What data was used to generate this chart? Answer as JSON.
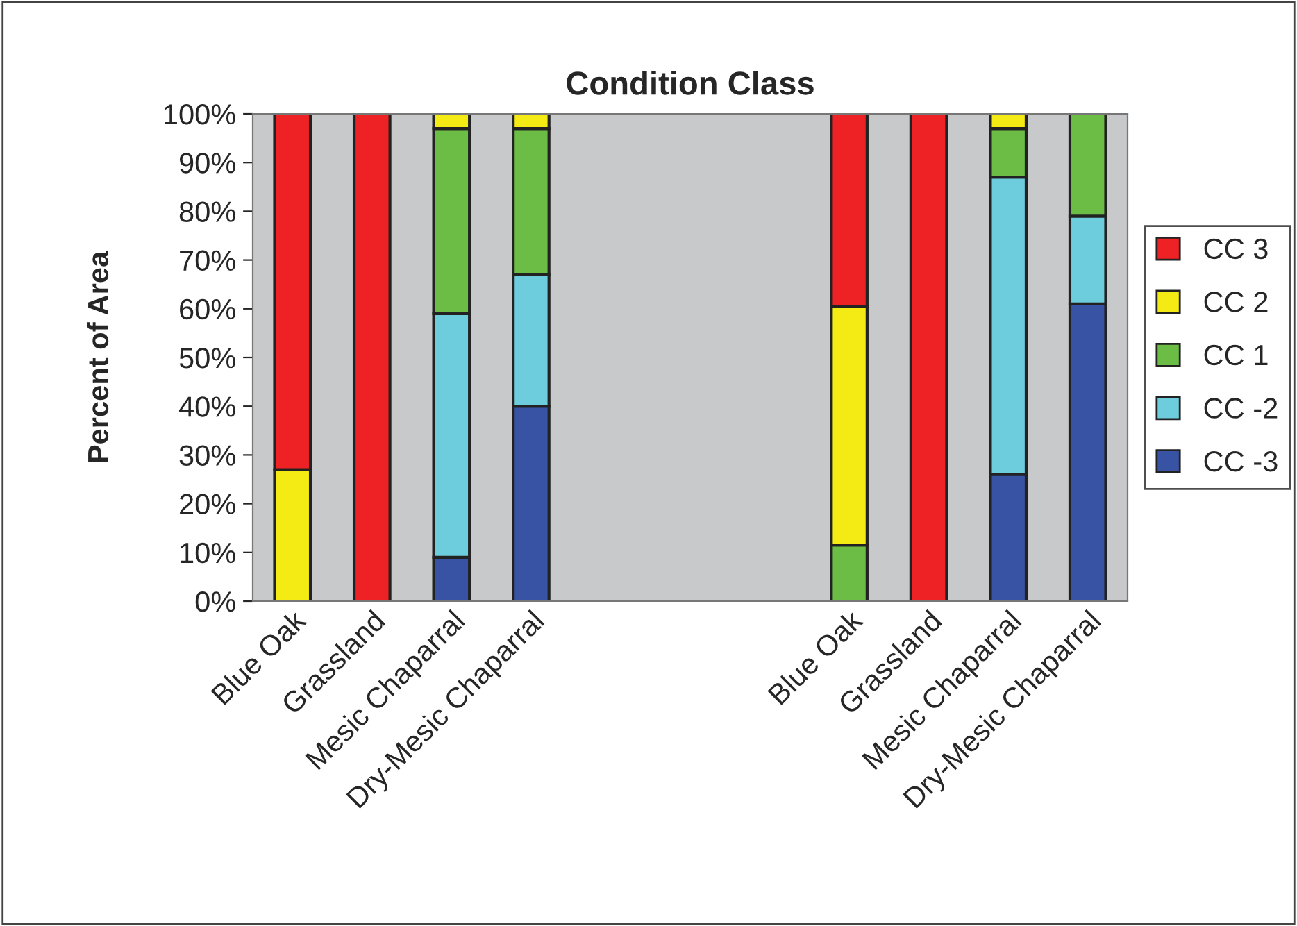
{
  "chart_data": {
    "type": "bar",
    "title": "Condition Class",
    "ylabel": "Percent of Area",
    "stacked": true,
    "categories": [
      "Blue Oak",
      "Grassland",
      "Mesic Chaparral",
      "Dry-Mesic Chaparral",
      null,
      null,
      null,
      "Blue Oak",
      "Grassland",
      "Mesic Chaparral",
      "Dry-Mesic Chaparral"
    ],
    "series": [
      {
        "name": "CC -3",
        "color": "#3953a4",
        "values": [
          0,
          0,
          9,
          40,
          null,
          null,
          null,
          0,
          0,
          26,
          61
        ]
      },
      {
        "name": "CC -2",
        "color": "#6ecddd",
        "values": [
          0,
          0,
          50,
          27,
          null,
          null,
          null,
          0,
          0,
          61,
          18
        ]
      },
      {
        "name": "CC 1",
        "color": "#6cbd45",
        "values": [
          0,
          0,
          38,
          30,
          null,
          null,
          null,
          11.5,
          0,
          10,
          21
        ]
      },
      {
        "name": "CC 2",
        "color": "#f5eb14",
        "values": [
          27,
          0,
          3,
          3,
          null,
          null,
          null,
          49,
          0,
          3,
          0
        ]
      },
      {
        "name": "CC 3",
        "color": "#ee2224",
        "values": [
          73,
          100,
          0,
          0,
          null,
          null,
          null,
          39.5,
          100,
          0,
          0
        ]
      }
    ],
    "ylim": [
      0,
      100
    ],
    "yticks": [
      {
        "value": 0,
        "label": "0%"
      },
      {
        "value": 10,
        "label": "10%"
      },
      {
        "value": 20,
        "label": "20%"
      },
      {
        "value": 30,
        "label": "30%"
      },
      {
        "value": 40,
        "label": "40%"
      },
      {
        "value": 50,
        "label": "50%"
      },
      {
        "value": 60,
        "label": "60%"
      },
      {
        "value": 70,
        "label": "70%"
      },
      {
        "value": 80,
        "label": "80%"
      },
      {
        "value": 90,
        "label": "90%"
      },
      {
        "value": 100,
        "label": "100%"
      }
    ],
    "legend": "right"
  }
}
